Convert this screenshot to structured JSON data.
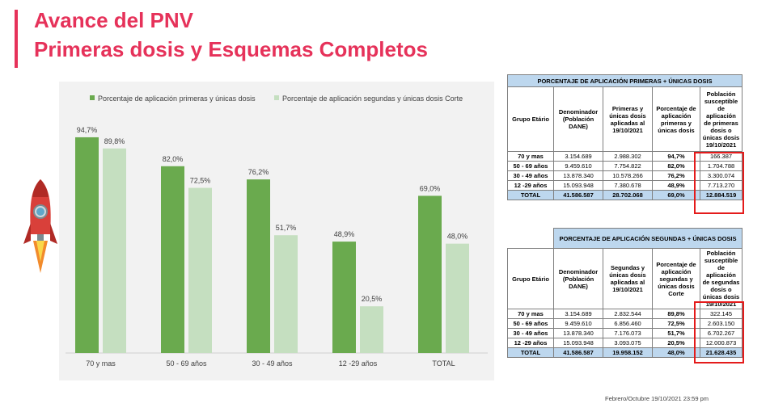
{
  "title_line1": "Avance del PNV",
  "title_line2": "Primeras dosis y Esquemas Completos",
  "footer": "Febrero/Octubre  19/10/2021  23:59 pm",
  "colors": {
    "accent": "#e6325a",
    "series1": "#6aaa4e",
    "series2": "#c5dfc0",
    "table_header": "#bdd7ee",
    "highlight": "#e41b1b"
  },
  "chart_data": {
    "type": "bar",
    "categories": [
      "70  y mas",
      "50 - 69 años",
      "30 - 49 años",
      "12 -29 años",
      "TOTAL"
    ],
    "series": [
      {
        "name": "Porcentaje de aplicación primeras y únicas dosis",
        "values": [
          94.7,
          82.0,
          76.2,
          48.9,
          69.0
        ],
        "labels": [
          "94,7%",
          "82,0%",
          "76,2%",
          "48,9%",
          "69,0%"
        ],
        "color": "#6aaa4e"
      },
      {
        "name": "Porcentaje de aplicación segundas y únicas dosis Corte",
        "values": [
          89.8,
          72.5,
          51.7,
          20.5,
          48.0
        ],
        "labels": [
          "89,8%",
          "72,5%",
          "51,7%",
          "20,5%",
          "48,0%"
        ],
        "color": "#c5dfc0"
      }
    ],
    "ylim": [
      0,
      100
    ],
    "legend": "top",
    "grid": false
  },
  "table1": {
    "title": "PORCENTAJE DE APLICACIÓN PRIMERAS + ÚNICAS DOSIS",
    "headers": [
      "Grupo Etário",
      "Denominador (Población DANE)",
      "Primeras y únicas dosis aplicadas al 19/10/2021",
      "Porcentaje de aplicación primeras y únicas dosis",
      "Población susceptible de aplicación de primeras dosis o únicas dosis 19/10/2021"
    ],
    "rows": [
      [
        "70  y mas",
        "3.154.689",
        "2.988.302",
        "94,7%",
        "166.387"
      ],
      [
        "50 - 69 años",
        "9.459.610",
        "7.754.822",
        "82,0%",
        "1.704.788"
      ],
      [
        "30 - 49 años",
        "13.878.340",
        "10.578.266",
        "76,2%",
        "3.300.074"
      ],
      [
        "12 -29 años",
        "15.093.948",
        "7.380.678",
        "48,9%",
        "7.713.270"
      ],
      [
        "TOTAL",
        "41.586.587",
        "28.702.068",
        "69,0%",
        "12.884.519"
      ]
    ]
  },
  "table2": {
    "title": "PORCENTAJE DE APLICACIÓN SEGUNDAS  + ÚNICAS DOSIS",
    "headers": [
      "Grupo Etário",
      "Denominador (Población DANE)",
      "Segundas y únicas dosis aplicadas al 19/10/2021",
      "Porcentaje de aplicación segundas y únicas dosis Corte",
      "Población susceptible de aplicación de segundas dosis o únicas dosis 19/10/2021"
    ],
    "rows": [
      [
        "70  y mas",
        "3.154.689",
        "2.832.544",
        "89,8%",
        "322.145"
      ],
      [
        "50 - 69 años",
        "9.459.610",
        "6.856.460",
        "72,5%",
        "2.603.150"
      ],
      [
        "30 - 49 años",
        "13.878.340",
        "7.176.073",
        "51,7%",
        "6.702.267"
      ],
      [
        "12 -29 años",
        "15.093.948",
        "3.093.075",
        "20,5%",
        "12.000.873"
      ],
      [
        "TOTAL",
        "41.586.587",
        "19.958.152",
        "48,0%",
        "21.628.435"
      ]
    ]
  }
}
